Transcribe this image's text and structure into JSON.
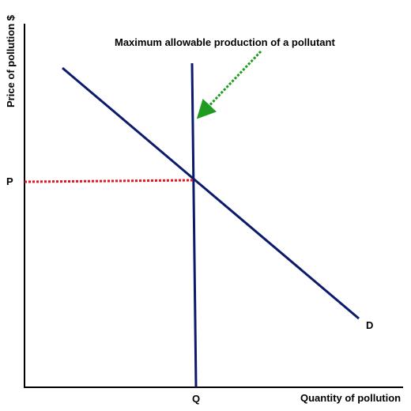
{
  "diagram": {
    "annotation": "Maximum allowable production of a pollutant",
    "y_axis_label": "Price of pollution $",
    "x_axis_label": "Quantity of pollution",
    "price_label": "P",
    "quantity_label": "Q",
    "demand_label": "D"
  },
  "colors": {
    "axis": "#000000",
    "demand_line": "#0b1a6b",
    "quota_line": "#0b1a6b",
    "price_guide": "#e8151b",
    "arrow": "#1f9b1f"
  }
}
